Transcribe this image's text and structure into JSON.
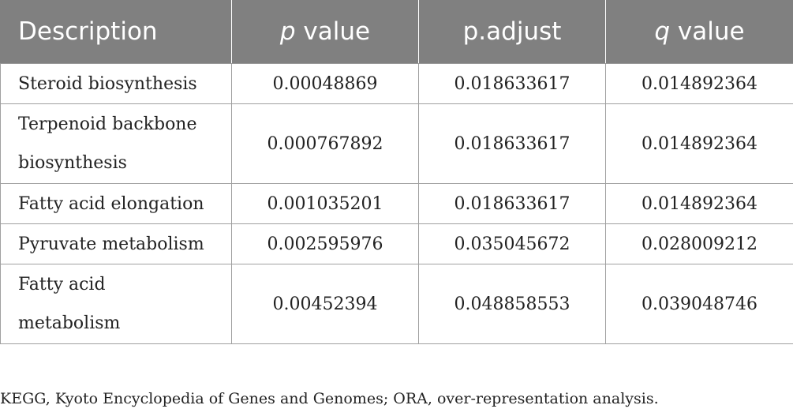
{
  "table": {
    "headers": {
      "description": "Description",
      "p_value_symbol": "p",
      "p_value_rest": " value",
      "p_adjust": "p.adjust",
      "q_value_symbol": "q",
      "q_value_rest": " value"
    },
    "rows": [
      {
        "description": "Steroid biosynthesis",
        "p_value": "0.00048869",
        "p_adjust": "0.018633617",
        "q_value": "0.014892364"
      },
      {
        "description": "Terpenoid backbone biosynthesis",
        "p_value": "0.000767892",
        "p_adjust": "0.018633617",
        "q_value": "0.014892364"
      },
      {
        "description": "Fatty acid elongation",
        "p_value": "0.001035201",
        "p_adjust": "0.018633617",
        "q_value": "0.014892364"
      },
      {
        "description": "Pyruvate metabolism",
        "p_value": "0.002595976",
        "p_adjust": "0.035045672",
        "q_value": "0.028009212"
      },
      {
        "description": "Fatty acid metabolism",
        "p_value": "0.00452394",
        "p_adjust": "0.048858553",
        "q_value": "0.039048746"
      }
    ]
  },
  "footnote": "KEGG, Kyoto Encyclopedia of Genes and Genomes; ORA, over-representation analysis.",
  "colors": {
    "header_background": "#808080",
    "header_text": "#ffffff",
    "border": "#a0a0a0"
  }
}
